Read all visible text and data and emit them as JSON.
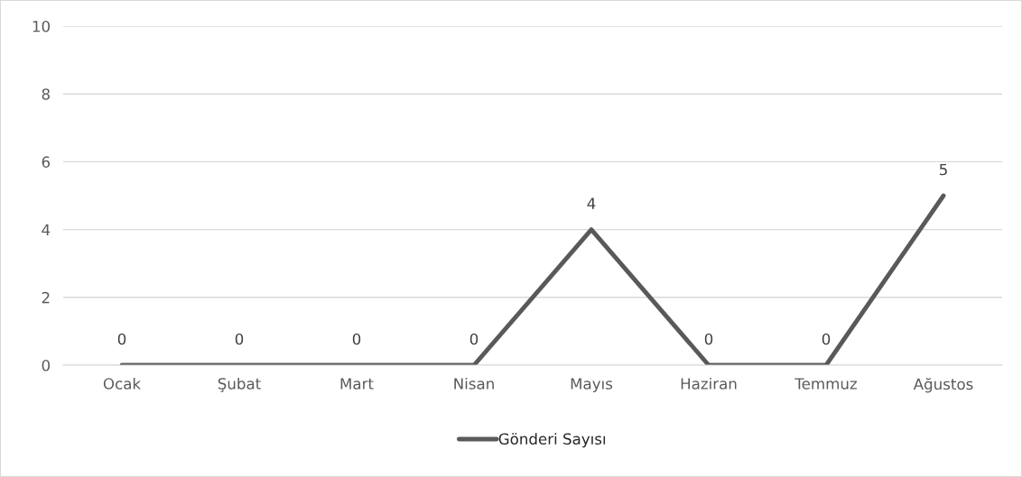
{
  "chart_data": {
    "type": "line",
    "categories": [
      "Ocak",
      "Şubat",
      "Mart",
      "Nisan",
      "Mayıs",
      "Haziran",
      "Temmuz",
      "Ağustos"
    ],
    "series": [
      {
        "name": "Gönderi Sayısı",
        "color": "#595959",
        "values": [
          0,
          0,
          0,
          0,
          4,
          0,
          0,
          5
        ]
      }
    ],
    "ylim": [
      0,
      10
    ],
    "yticks": [
      0,
      2,
      4,
      6,
      8,
      10
    ],
    "grid": "y",
    "legend": "bottom",
    "data_labels": true,
    "marker": "none",
    "line_style": "solid"
  }
}
